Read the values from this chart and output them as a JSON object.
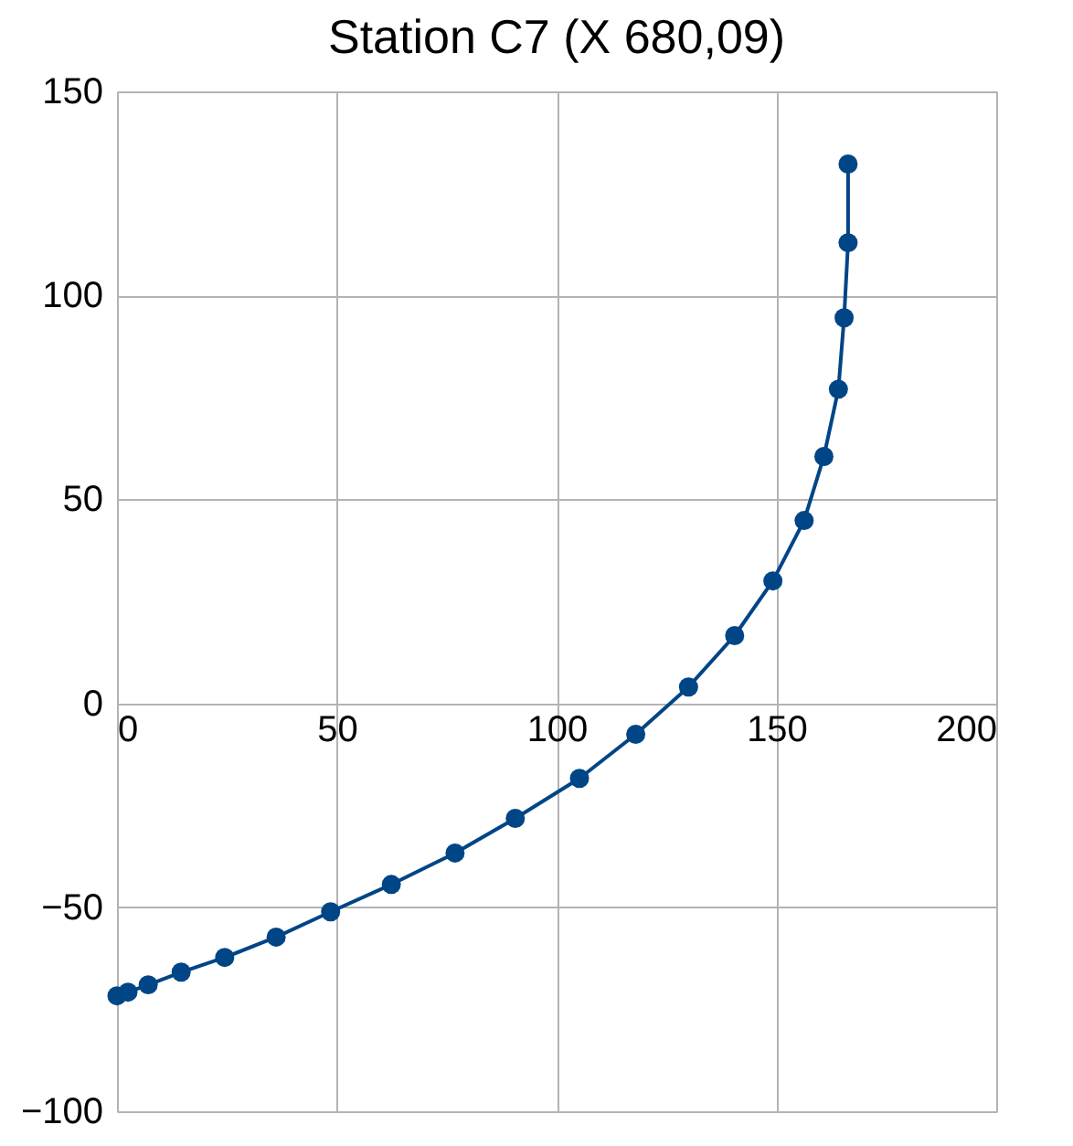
{
  "chart_data": {
    "type": "line",
    "title": "Station C7 (X 680,09)",
    "x": [
      0,
      2.5,
      7.1,
      14.6,
      24.5,
      36.2,
      48.6,
      62.4,
      76.9,
      90.6,
      105.2,
      118,
      130,
      140.5,
      149.2,
      156.3,
      160.8,
      164.1,
      165.4,
      166.3,
      166.3
    ],
    "series": [
      {
        "color": "#004586",
        "values": [
          -71.7,
          -70.8,
          -69,
          -65.9,
          -62.3,
          -57.3,
          -51.1,
          -44.4,
          -36.7,
          -28.2,
          -18.4,
          -7.6,
          4,
          16.6,
          30,
          44.8,
          60.5,
          77,
          94.5,
          112.9,
          132.2
        ]
      }
    ],
    "xlim": [
      0,
      200
    ],
    "xticks": [
      0,
      50,
      100,
      150,
      200
    ],
    "ylim": [
      -100,
      150
    ],
    "yticks": [
      -100,
      -50,
      0,
      50,
      100,
      150
    ],
    "grid": true,
    "marker": "circle",
    "line_style": "solid"
  }
}
